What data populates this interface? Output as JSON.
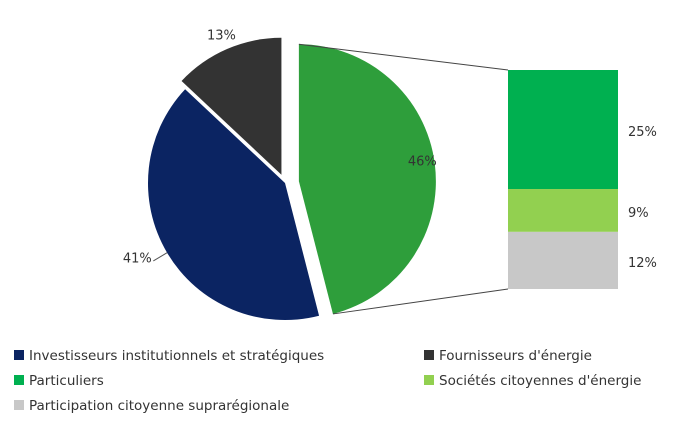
{
  "chart_data": [
    {
      "type": "pie",
      "categories": [
        null,
        "Investisseurs institutionnels et stratégiques",
        "Fournisseurs d'énergie"
      ],
      "values": [
        46,
        41,
        13
      ],
      "value_labels": [
        "46%",
        "41%",
        "13%"
      ],
      "colors": [
        "#2e9e3b",
        "#0b2462",
        "#333333"
      ]
    },
    {
      "type": "stacked-bar",
      "categories": [
        "Particuliers",
        "Sociétés citoyennes d'énergie",
        "Participation citoyenne suprarégionale"
      ],
      "values": [
        25,
        9,
        12
      ],
      "value_labels": [
        "25%",
        "9%",
        "12%"
      ],
      "colors": [
        "#00b050",
        "#92d050",
        "#c8c8c8"
      ]
    }
  ]
}
